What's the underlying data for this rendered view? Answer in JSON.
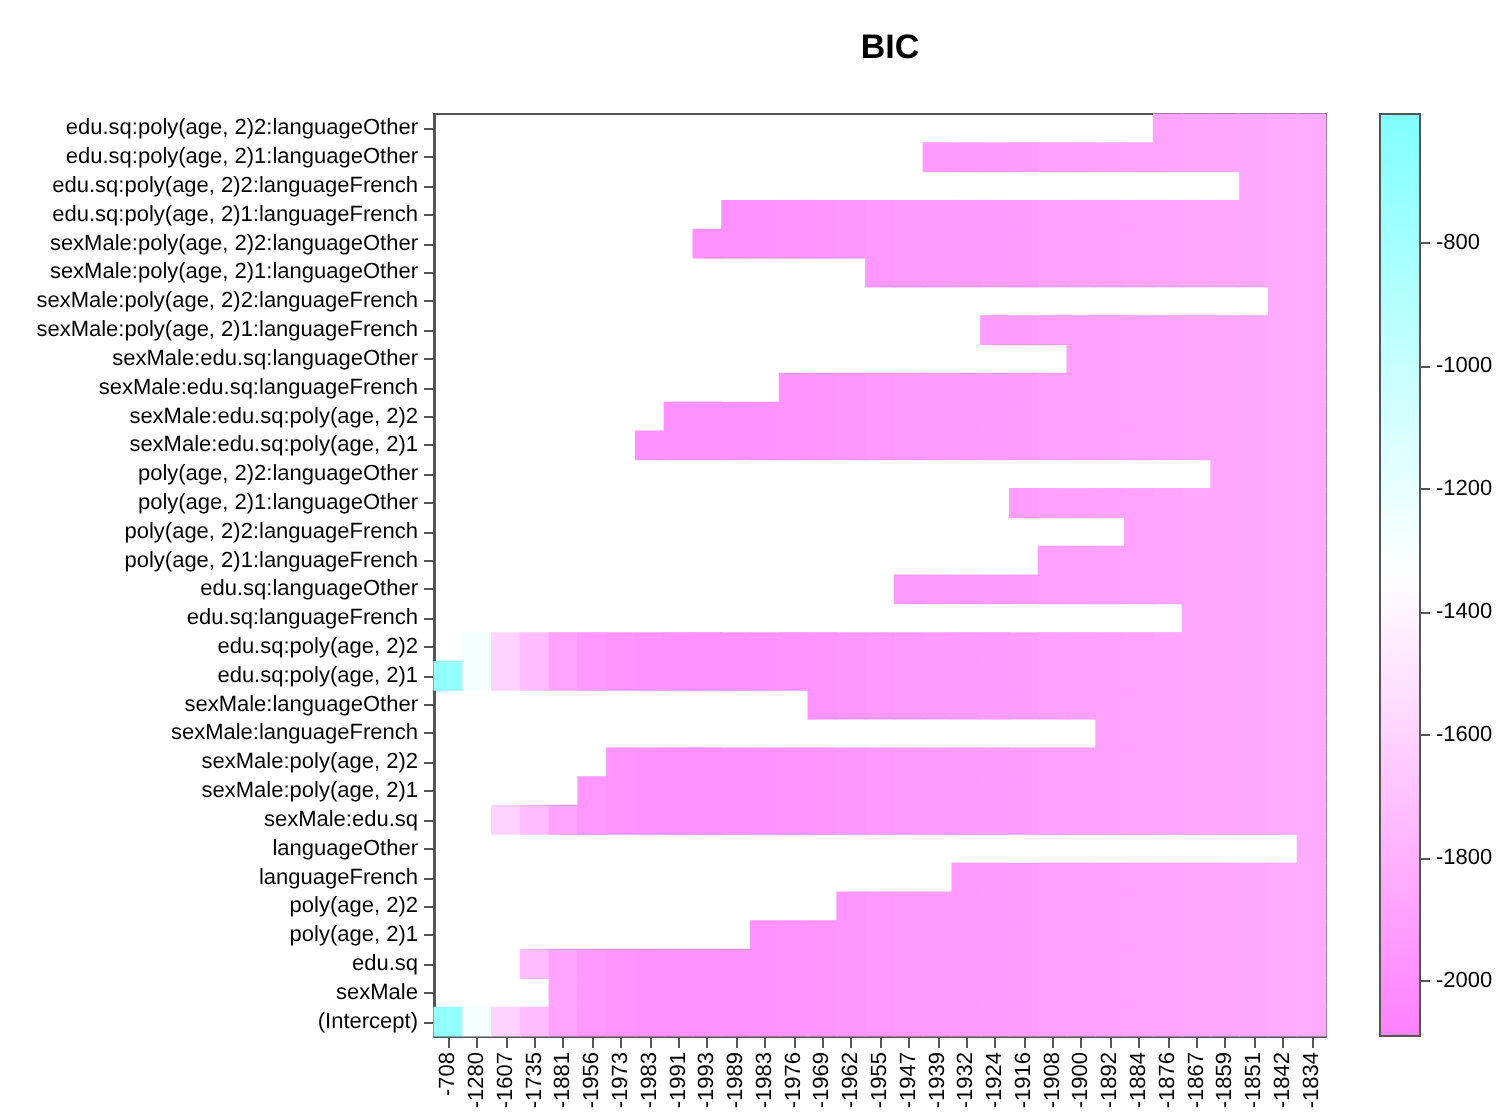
{
  "chart_data": {
    "type": "heatmap",
    "title": "BIC",
    "categories": [
      "-708",
      "-1280",
      "-1607",
      "-1735",
      "-1881",
      "-1956",
      "-1973",
      "-1983",
      "-1991",
      "-1993",
      "-1989",
      "-1983",
      "-1976",
      "-1969",
      "-1962",
      "-1955",
      "-1947",
      "-1939",
      "-1932",
      "-1924",
      "-1916",
      "-1908",
      "-1900",
      "-1892",
      "-1884",
      "-1876",
      "-1867",
      "-1859",
      "-1851",
      "-1842",
      "-1834"
    ],
    "y_categories": [
      "edu.sq:poly(age, 2)2:languageOther",
      "edu.sq:poly(age, 2)1:languageOther",
      "edu.sq:poly(age, 2)2:languageFrench",
      "edu.sq:poly(age, 2)1:languageFrench",
      "sexMale:poly(age, 2)2:languageOther",
      "sexMale:poly(age, 2)1:languageOther",
      "sexMale:poly(age, 2)2:languageFrench",
      "sexMale:poly(age, 2)1:languageFrench",
      "sexMale:edu.sq:languageOther",
      "sexMale:edu.sq:languageFrench",
      "sexMale:edu.sq:poly(age, 2)2",
      "sexMale:edu.sq:poly(age, 2)1",
      "poly(age, 2)2:languageOther",
      "poly(age, 2)1:languageOther",
      "poly(age, 2)2:languageFrench",
      "poly(age, 2)1:languageFrench",
      "edu.sq:languageOther",
      "edu.sq:languageFrench",
      "edu.sq:poly(age, 2)2",
      "edu.sq:poly(age, 2)1",
      "sexMale:languageOther",
      "sexMale:languageFrench",
      "sexMale:poly(age, 2)2",
      "sexMale:poly(age, 2)1",
      "sexMale:edu.sq",
      "languageOther",
      "languageFrench",
      "poly(age, 2)2",
      "poly(age, 2)1",
      "edu.sq",
      "sexMale",
      "(Intercept)"
    ],
    "cells": [
      [
        null,
        null,
        null,
        null,
        null,
        null,
        null,
        null,
        null,
        null,
        null,
        null,
        null,
        null,
        null,
        null,
        null,
        null,
        null,
        null,
        null,
        null,
        null,
        null,
        null,
        -1876,
        -1867,
        -1859,
        -1851,
        -1842,
        -1834
      ],
      [
        null,
        null,
        null,
        null,
        null,
        null,
        null,
        null,
        null,
        null,
        null,
        null,
        null,
        null,
        null,
        null,
        null,
        -1939,
        -1932,
        -1924,
        -1916,
        -1908,
        -1900,
        -1892,
        -1884,
        -1876,
        -1867,
        -1859,
        -1851,
        -1842,
        -1834
      ],
      [
        null,
        null,
        null,
        null,
        null,
        null,
        null,
        null,
        null,
        null,
        null,
        null,
        null,
        null,
        null,
        null,
        null,
        null,
        null,
        null,
        null,
        null,
        null,
        null,
        null,
        null,
        null,
        null,
        -1851,
        -1842,
        -1834
      ],
      [
        null,
        null,
        null,
        null,
        null,
        null,
        null,
        null,
        null,
        null,
        -1989,
        -1983,
        -1976,
        -1969,
        -1962,
        -1955,
        -1947,
        -1939,
        -1932,
        -1924,
        -1916,
        -1908,
        -1900,
        -1892,
        -1884,
        -1876,
        -1867,
        -1859,
        -1851,
        -1842,
        -1834
      ],
      [
        null,
        null,
        null,
        null,
        null,
        null,
        null,
        null,
        null,
        -1993,
        -1989,
        -1983,
        -1976,
        -1969,
        -1962,
        -1955,
        -1947,
        -1939,
        -1932,
        -1924,
        -1916,
        -1908,
        -1900,
        -1892,
        -1884,
        -1876,
        -1867,
        -1859,
        -1851,
        -1842,
        -1834
      ],
      [
        null,
        null,
        null,
        null,
        null,
        null,
        null,
        null,
        null,
        null,
        null,
        null,
        null,
        null,
        null,
        -1955,
        -1947,
        -1939,
        -1932,
        -1924,
        -1916,
        -1908,
        -1900,
        -1892,
        -1884,
        -1876,
        -1867,
        -1859,
        -1851,
        -1842,
        -1834
      ],
      [
        null,
        null,
        null,
        null,
        null,
        null,
        null,
        null,
        null,
        null,
        null,
        null,
        null,
        null,
        null,
        null,
        null,
        null,
        null,
        null,
        null,
        null,
        null,
        null,
        null,
        null,
        null,
        null,
        null,
        -1842,
        -1834
      ],
      [
        null,
        null,
        null,
        null,
        null,
        null,
        null,
        null,
        null,
        null,
        null,
        null,
        null,
        null,
        null,
        null,
        null,
        null,
        null,
        -1924,
        -1916,
        -1908,
        -1900,
        -1892,
        -1884,
        -1876,
        -1867,
        -1859,
        -1851,
        -1842,
        -1834
      ],
      [
        null,
        null,
        null,
        null,
        null,
        null,
        null,
        null,
        null,
        null,
        null,
        null,
        null,
        null,
        null,
        null,
        null,
        null,
        null,
        null,
        null,
        null,
        -1900,
        -1892,
        -1884,
        -1876,
        -1867,
        -1859,
        -1851,
        -1842,
        -1834
      ],
      [
        null,
        null,
        null,
        null,
        null,
        null,
        null,
        null,
        null,
        null,
        null,
        null,
        -1976,
        -1969,
        -1962,
        -1955,
        -1947,
        -1939,
        -1932,
        -1924,
        -1916,
        -1908,
        -1900,
        -1892,
        -1884,
        -1876,
        -1867,
        -1859,
        -1851,
        -1842,
        -1834
      ],
      [
        null,
        null,
        null,
        null,
        null,
        null,
        null,
        null,
        -1991,
        -1993,
        -1989,
        -1983,
        -1976,
        -1969,
        -1962,
        -1955,
        -1947,
        -1939,
        -1932,
        -1924,
        -1916,
        -1908,
        -1900,
        -1892,
        -1884,
        -1876,
        -1867,
        -1859,
        -1851,
        -1842,
        -1834
      ],
      [
        null,
        null,
        null,
        null,
        null,
        null,
        null,
        -1983,
        -1991,
        -1993,
        -1989,
        -1983,
        -1976,
        -1969,
        -1962,
        -1955,
        -1947,
        -1939,
        -1932,
        -1924,
        -1916,
        -1908,
        -1900,
        -1892,
        -1884,
        -1876,
        -1867,
        -1859,
        -1851,
        -1842,
        -1834
      ],
      [
        null,
        null,
        null,
        null,
        null,
        null,
        null,
        null,
        null,
        null,
        null,
        null,
        null,
        null,
        null,
        null,
        null,
        null,
        null,
        null,
        null,
        null,
        null,
        null,
        null,
        null,
        null,
        -1859,
        -1851,
        -1842,
        -1834
      ],
      [
        null,
        null,
        null,
        null,
        null,
        null,
        null,
        null,
        null,
        null,
        null,
        null,
        null,
        null,
        null,
        null,
        null,
        null,
        null,
        null,
        -1916,
        -1908,
        -1900,
        -1892,
        -1884,
        -1876,
        -1867,
        -1859,
        -1851,
        -1842,
        -1834
      ],
      [
        null,
        null,
        null,
        null,
        null,
        null,
        null,
        null,
        null,
        null,
        null,
        null,
        null,
        null,
        null,
        null,
        null,
        null,
        null,
        null,
        null,
        null,
        null,
        null,
        -1884,
        -1876,
        -1867,
        -1859,
        -1851,
        -1842,
        -1834
      ],
      [
        null,
        null,
        null,
        null,
        null,
        null,
        null,
        null,
        null,
        null,
        null,
        null,
        null,
        null,
        null,
        null,
        null,
        null,
        null,
        null,
        null,
        -1908,
        -1900,
        -1892,
        -1884,
        -1876,
        -1867,
        -1859,
        -1851,
        -1842,
        -1834
      ],
      [
        null,
        null,
        null,
        null,
        null,
        null,
        null,
        null,
        null,
        null,
        null,
        null,
        null,
        null,
        null,
        null,
        -1947,
        -1939,
        -1932,
        -1924,
        -1916,
        -1908,
        -1900,
        -1892,
        -1884,
        -1876,
        -1867,
        -1859,
        -1851,
        -1842,
        -1834
      ],
      [
        null,
        null,
        null,
        null,
        null,
        null,
        null,
        null,
        null,
        null,
        null,
        null,
        null,
        null,
        null,
        null,
        null,
        null,
        null,
        null,
        null,
        null,
        null,
        null,
        null,
        null,
        -1867,
        -1859,
        -1851,
        -1842,
        -1834
      ],
      [
        null,
        -1280,
        -1607,
        -1735,
        -1881,
        -1956,
        -1973,
        -1983,
        -1991,
        -1993,
        -1989,
        -1983,
        -1976,
        -1969,
        -1962,
        -1955,
        -1947,
        -1939,
        -1932,
        -1924,
        -1916,
        -1908,
        -1900,
        -1892,
        -1884,
        -1876,
        -1867,
        -1859,
        -1851,
        -1842,
        -1834
      ],
      [
        -708,
        -1280,
        -1607,
        -1735,
        -1881,
        -1956,
        -1973,
        -1983,
        -1991,
        -1993,
        -1989,
        -1983,
        -1976,
        -1969,
        -1962,
        -1955,
        -1947,
        -1939,
        -1932,
        -1924,
        -1916,
        -1908,
        -1900,
        -1892,
        -1884,
        -1876,
        -1867,
        -1859,
        -1851,
        -1842,
        -1834
      ],
      [
        null,
        null,
        null,
        null,
        null,
        null,
        null,
        null,
        null,
        null,
        null,
        null,
        null,
        -1969,
        -1962,
        -1955,
        -1947,
        -1939,
        -1932,
        -1924,
        -1916,
        -1908,
        -1900,
        -1892,
        -1884,
        -1876,
        -1867,
        -1859,
        -1851,
        -1842,
        -1834
      ],
      [
        null,
        null,
        null,
        null,
        null,
        null,
        null,
        null,
        null,
        null,
        null,
        null,
        null,
        null,
        null,
        null,
        null,
        null,
        null,
        null,
        null,
        null,
        null,
        -1892,
        -1884,
        -1876,
        -1867,
        -1859,
        -1851,
        -1842,
        -1834
      ],
      [
        null,
        null,
        null,
        null,
        null,
        null,
        -1973,
        -1983,
        -1991,
        -1993,
        -1989,
        -1983,
        -1976,
        -1969,
        -1962,
        -1955,
        -1947,
        -1939,
        -1932,
        -1924,
        -1916,
        -1908,
        -1900,
        -1892,
        -1884,
        -1876,
        -1867,
        -1859,
        -1851,
        -1842,
        -1834
      ],
      [
        null,
        null,
        null,
        null,
        null,
        -1956,
        -1973,
        -1983,
        -1991,
        -1993,
        -1989,
        -1983,
        -1976,
        -1969,
        -1962,
        -1955,
        -1947,
        -1939,
        -1932,
        -1924,
        -1916,
        -1908,
        -1900,
        -1892,
        -1884,
        -1876,
        -1867,
        -1859,
        -1851,
        -1842,
        -1834
      ],
      [
        null,
        null,
        -1607,
        -1735,
        -1881,
        -1956,
        -1973,
        -1983,
        -1991,
        -1993,
        -1989,
        -1983,
        -1976,
        -1969,
        -1962,
        -1955,
        -1947,
        -1939,
        -1932,
        -1924,
        -1916,
        -1908,
        -1900,
        -1892,
        -1884,
        -1876,
        -1867,
        -1859,
        -1851,
        -1842,
        -1834
      ],
      [
        null,
        null,
        null,
        null,
        null,
        null,
        null,
        null,
        null,
        null,
        null,
        null,
        null,
        null,
        null,
        null,
        null,
        null,
        null,
        null,
        null,
        null,
        null,
        null,
        null,
        null,
        null,
        null,
        null,
        null,
        -1834
      ],
      [
        null,
        null,
        null,
        null,
        null,
        null,
        null,
        null,
        null,
        null,
        null,
        null,
        null,
        null,
        null,
        null,
        null,
        null,
        -1932,
        -1924,
        -1916,
        -1908,
        -1900,
        -1892,
        -1884,
        -1876,
        -1867,
        -1859,
        -1851,
        -1842,
        -1834
      ],
      [
        null,
        null,
        null,
        null,
        null,
        null,
        null,
        null,
        null,
        null,
        null,
        null,
        null,
        null,
        -1962,
        -1955,
        -1947,
        -1939,
        -1932,
        -1924,
        -1916,
        -1908,
        -1900,
        -1892,
        -1884,
        -1876,
        -1867,
        -1859,
        -1851,
        -1842,
        -1834
      ],
      [
        null,
        null,
        null,
        null,
        null,
        null,
        null,
        null,
        null,
        null,
        null,
        -1983,
        -1976,
        -1969,
        -1962,
        -1955,
        -1947,
        -1939,
        -1932,
        -1924,
        -1916,
        -1908,
        -1900,
        -1892,
        -1884,
        -1876,
        -1867,
        -1859,
        -1851,
        -1842,
        -1834
      ],
      [
        null,
        null,
        null,
        -1735,
        -1881,
        -1956,
        -1973,
        -1983,
        -1991,
        -1993,
        -1989,
        -1983,
        -1976,
        -1969,
        -1962,
        -1955,
        -1947,
        -1939,
        -1932,
        -1924,
        -1916,
        -1908,
        -1900,
        -1892,
        -1884,
        -1876,
        -1867,
        -1859,
        -1851,
        -1842,
        -1834
      ],
      [
        null,
        null,
        null,
        null,
        -1881,
        -1956,
        -1973,
        -1983,
        -1991,
        -1993,
        -1989,
        -1983,
        -1976,
        -1969,
        -1962,
        -1955,
        -1947,
        -1939,
        -1932,
        -1924,
        -1916,
        -1908,
        -1900,
        -1892,
        -1884,
        -1876,
        -1867,
        -1859,
        -1851,
        -1842,
        -1834
      ],
      [
        -708,
        -1280,
        -1607,
        -1735,
        -1881,
        -1956,
        -1973,
        -1983,
        -1991,
        -1993,
        -1989,
        -1983,
        -1976,
        -1969,
        -1962,
        -1955,
        -1947,
        -1939,
        -1932,
        -1924,
        -1916,
        -1908,
        -1900,
        -1892,
        -1884,
        -1876,
        -1867,
        -1859,
        -1851,
        -1842,
        -1834
      ]
    ],
    "clim": [
      -2090,
      -590
    ],
    "cticks": [
      -2000,
      -1800,
      -1600,
      -1400,
      -1200,
      -1000,
      -800
    ]
  }
}
